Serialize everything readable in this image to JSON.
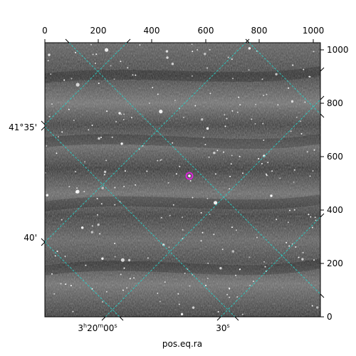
{
  "figure": {
    "xlabel": "pos.eq.ra",
    "top_ticks": [
      "0",
      "200",
      "400",
      "600",
      "800",
      "1000"
    ],
    "right_ticks": [
      "0",
      "200",
      "400",
      "600",
      "800",
      "1000"
    ],
    "ra_ticks": [
      {
        "h": "3",
        "m": "20",
        "s": "00",
        "h_unit": "h",
        "m_unit": "m",
        "s_unit": "s"
      },
      {
        "s": "30",
        "s_unit": "s"
      }
    ],
    "dec_ticks": [
      "41°35'",
      "40'"
    ],
    "grid_color": "#2ad0c8",
    "marker_color": "#e020e0",
    "image_style": "grayscale star field with horizontal banding"
  }
}
